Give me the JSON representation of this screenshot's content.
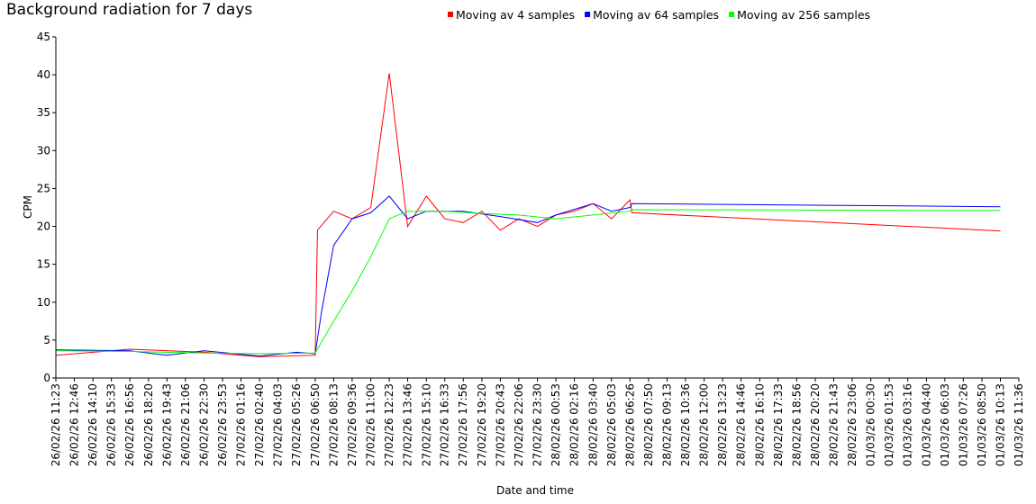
{
  "chart_data": {
    "type": "line",
    "title": "Background radiation for 7 days",
    "xlabel": "Date and time",
    "ylabel": "CPM",
    "ylim": [
      0,
      45
    ],
    "yticks": [
      0,
      5,
      10,
      15,
      20,
      25,
      30,
      35,
      40,
      45
    ],
    "grid": false,
    "legend_position": "top",
    "x_tick_labels": [
      "26/02/26 11:23",
      "26/02/26 12:46",
      "26/02/26 14:10",
      "26/02/26 15:33",
      "26/02/26 16:56",
      "26/02/26 18:20",
      "26/02/26 19:43",
      "26/02/26 21:06",
      "26/02/26 22:30",
      "26/02/26 23:53",
      "27/02/26 01:16",
      "27/02/26 02:40",
      "27/02/26 04:03",
      "27/02/26 05:26",
      "27/02/26 06:50",
      "27/02/26 08:13",
      "27/02/26 09:36",
      "27/02/26 11:00",
      "27/02/26 12:23",
      "27/02/26 13:46",
      "27/02/26 15:10",
      "27/02/26 16:33",
      "27/02/26 17:56",
      "27/02/26 19:20",
      "27/02/26 20:43",
      "27/02/26 22:06",
      "27/02/26 23:30",
      "28/02/26 00:53",
      "28/02/26 02:16",
      "28/02/26 03:40",
      "28/02/26 05:03",
      "28/02/26 06:26",
      "28/02/26 07:50",
      "28/02/26 09:13",
      "28/02/26 10:36",
      "28/02/26 12:00",
      "28/02/26 13:23",
      "28/02/26 14:46",
      "28/02/26 16:10",
      "28/02/26 17:33",
      "28/02/26 18:56",
      "28/02/26 20:20",
      "28/02/26 21:43",
      "28/02/26 23:06",
      "01/03/26 00:30",
      "01/03/26 01:53",
      "01/03/26 03:16",
      "01/03/26 04:40",
      "01/03/26 06:03",
      "01/03/26 07:26",
      "01/03/26 08:50",
      "01/03/26 10:13",
      "01/03/26 11:36"
    ],
    "series": [
      {
        "name": "Moving av 4 samples",
        "color": "#ff0000",
        "x": [
          "26/02/26 11:23",
          "26/02/26 16:56",
          "26/02/26 22:30",
          "27/02/26 02:40",
          "27/02/26 06:50",
          "27/02/26 07:00",
          "27/02/26 08:13",
          "27/02/26 09:36",
          "27/02/26 11:00",
          "27/02/26 12:23",
          "27/02/26 13:46",
          "27/02/26 15:10",
          "27/02/26 16:33",
          "27/02/26 17:56",
          "27/02/26 19:20",
          "27/02/26 20:43",
          "27/02/26 22:06",
          "27/02/26 23:30",
          "28/02/26 00:53",
          "28/02/26 02:16",
          "28/02/26 03:40",
          "28/02/26 05:03",
          "28/02/26 06:26",
          "28/02/26 06:35",
          "01/03/26 10:13"
        ],
        "values": [
          3.0,
          3.8,
          3.4,
          2.8,
          3.0,
          19.5,
          22.0,
          21.0,
          22.5,
          40.2,
          20.0,
          24.0,
          21.0,
          20.5,
          22.0,
          19.5,
          21.0,
          20.0,
          21.5,
          22.0,
          23.0,
          21.0,
          23.5,
          21.8,
          19.4
        ]
      },
      {
        "name": "Moving av 64 samples",
        "color": "#0000ff",
        "x": [
          "26/02/26 11:23",
          "26/02/26 16:56",
          "26/02/26 19:43",
          "26/02/26 22:30",
          "27/02/26 02:40",
          "27/02/26 05:26",
          "27/02/26 06:50",
          "27/02/26 07:20",
          "27/02/26 08:13",
          "27/02/26 09:36",
          "27/02/26 11:00",
          "27/02/26 12:23",
          "27/02/26 13:46",
          "27/02/26 15:10",
          "27/02/26 17:56",
          "27/02/26 20:43",
          "27/02/26 23:30",
          "28/02/26 00:53",
          "28/02/26 03:40",
          "28/02/26 05:03",
          "28/02/26 06:26",
          "28/02/26 06:35",
          "01/03/26 10:13"
        ],
        "values": [
          3.7,
          3.6,
          3.0,
          3.6,
          2.9,
          3.4,
          3.2,
          9.0,
          17.5,
          21.0,
          21.8,
          24.0,
          21.0,
          22.0,
          22.0,
          21.3,
          20.5,
          21.5,
          23.0,
          22.0,
          22.5,
          23.0,
          22.6
        ]
      },
      {
        "name": "Moving av 256 samples",
        "color": "#00ff00",
        "x": [
          "26/02/26 11:23",
          "26/02/26 16:56",
          "26/02/26 22:30",
          "27/02/26 02:40",
          "27/02/26 06:50",
          "27/02/26 08:13",
          "27/02/26 09:36",
          "27/02/26 11:00",
          "27/02/26 12:23",
          "27/02/26 13:46",
          "27/02/26 16:33",
          "27/02/26 19:20",
          "27/02/26 22:06",
          "28/02/26 00:53",
          "28/02/26 03:40",
          "28/02/26 06:26",
          "28/02/26 06:35",
          "01/03/26 10:13"
        ],
        "values": [
          3.6,
          3.5,
          3.3,
          3.2,
          3.3,
          7.5,
          11.5,
          16.0,
          21.0,
          22.0,
          22.0,
          21.7,
          21.5,
          21.0,
          21.5,
          22.0,
          22.2,
          22.1
        ]
      }
    ]
  }
}
